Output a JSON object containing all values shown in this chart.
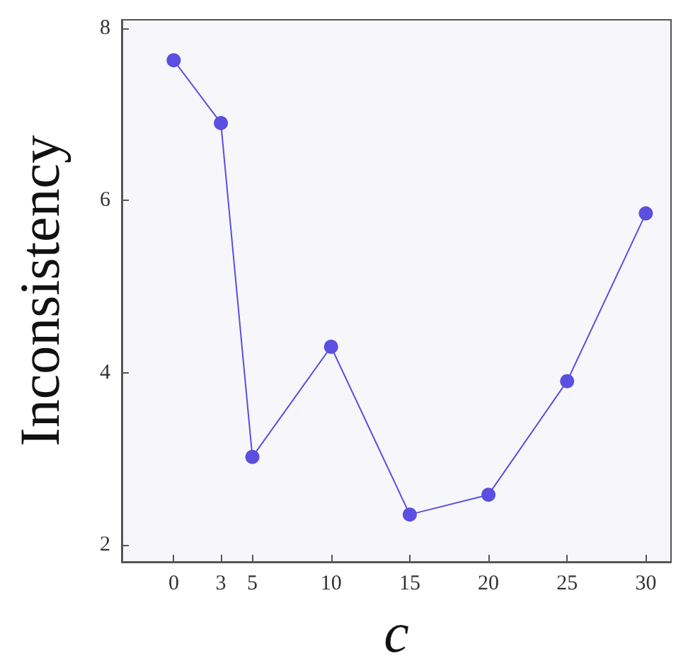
{
  "chart_data": {
    "type": "line",
    "xlabel": "c",
    "ylabel": "Inconsistency",
    "x": [
      0,
      3,
      5,
      10,
      15,
      20,
      25,
      30
    ],
    "series": [
      {
        "color": "#5b4ee0",
        "values": [
          7.63,
          6.9,
          3.02,
          4.3,
          2.35,
          2.58,
          3.9,
          5.85
        ]
      }
    ],
    "xlim": [
      -3.3,
      31.6
    ],
    "xticks": [
      0,
      3,
      5,
      10,
      15,
      20,
      25,
      30
    ],
    "ylim": [
      1.8,
      8.1
    ],
    "yticks": [
      2,
      4,
      6,
      8
    ],
    "grid": false,
    "marker": "circle",
    "line_style": "solid"
  }
}
